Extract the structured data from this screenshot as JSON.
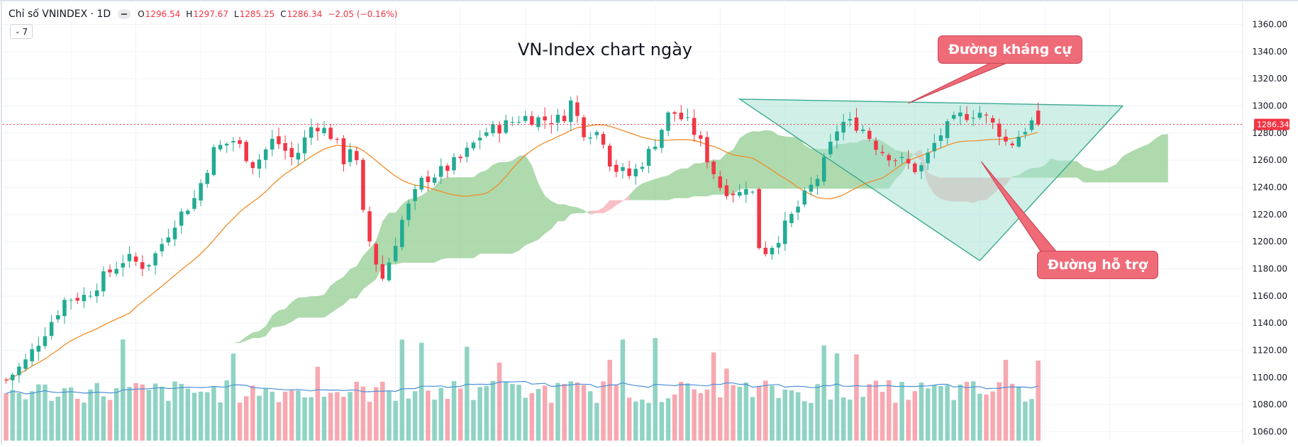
{
  "header": {
    "symbol": "Chỉ số VNINDEX · 1D",
    "ohlc": {
      "o_label": "O",
      "o": "1296.54",
      "h_label": "H",
      "h": "1297.67",
      "l_label": "L",
      "l": "1285.25",
      "c_label": "C",
      "c": "1286.34",
      "change": "−2.05 (−0.16%)"
    },
    "collapsed_count": "7"
  },
  "chart_data": {
    "type": "candlestick",
    "title": "VN-Index chart ngày",
    "ylim": [
      1060,
      1370
    ],
    "yticks": [
      1060,
      1080,
      1100,
      1120,
      1140,
      1160,
      1180,
      1200,
      1220,
      1240,
      1260,
      1280,
      1300,
      1320,
      1340,
      1360
    ],
    "ytick_labels": [
      "1060.00",
      "1080.00",
      "1100.00",
      "1120.00",
      "1140.00",
      "1160.00",
      "1180.00",
      "1200.00",
      "1220.00",
      "1240.00",
      "1260.00",
      "1280.00",
      "1300.00",
      "1320.00",
      "1340.00",
      "1360.00"
    ],
    "last_price": 1286.34,
    "last_price_label": "1286.34",
    "candle_count": 160,
    "extra_cloud_bars": 20,
    "price_path": [
      [
        0,
        1098
      ],
      [
        4,
        1112
      ],
      [
        8,
        1135
      ],
      [
        12,
        1158
      ],
      [
        16,
        1160
      ],
      [
        20,
        1175
      ],
      [
        24,
        1188
      ],
      [
        28,
        1182
      ],
      [
        30,
        1190
      ],
      [
        34,
        1215
      ],
      [
        38,
        1232
      ],
      [
        42,
        1268
      ],
      [
        46,
        1275
      ],
      [
        50,
        1256
      ],
      [
        54,
        1276
      ],
      [
        58,
        1260
      ],
      [
        62,
        1288
      ],
      [
        66,
        1277
      ],
      [
        68,
        1260
      ],
      [
        70,
        1275
      ],
      [
        72,
        1218
      ],
      [
        74,
        1190
      ],
      [
        76,
        1172
      ],
      [
        80,
        1218
      ],
      [
        84,
        1246
      ],
      [
        88,
        1252
      ],
      [
        92,
        1262
      ],
      [
        96,
        1280
      ],
      [
        100,
        1285
      ],
      [
        104,
        1292
      ],
      [
        108,
        1290
      ],
      [
        112,
        1290
      ],
      [
        114,
        1304
      ],
      [
        116,
        1282
      ],
      [
        120,
        1280
      ],
      [
        122,
        1255
      ],
      [
        126,
        1248
      ],
      [
        130,
        1268
      ],
      [
        134,
        1297
      ],
      [
        138,
        1285
      ],
      [
        140,
        1272
      ],
      [
        144,
        1240
      ],
      [
        148,
        1235
      ],
      [
        150,
        1248
      ],
      [
        152,
        1190
      ],
      [
        155,
        1200
      ],
      [
        160,
        1228
      ],
      [
        164,
        1250
      ],
      [
        168,
        1288
      ],
      [
        172,
        1286
      ],
      [
        176,
        1268
      ],
      [
        180,
        1260
      ],
      [
        184,
        1252
      ],
      [
        188,
        1278
      ],
      [
        192,
        1292
      ],
      [
        196,
        1296
      ],
      [
        200,
        1282
      ],
      [
        202,
        1270
      ],
      [
        206,
        1286
      ],
      [
        208,
        1291
      ]
    ],
    "volume_ylim": [
      0,
      115
    ],
    "series": [
      {
        "name": "MA20",
        "color": "#f28c28"
      },
      {
        "name": "Volume MA",
        "color": "#4a90d9"
      }
    ],
    "annotations": {
      "resistance_label": "Đường kháng cự",
      "support_label": "Đường hỗ trợ"
    },
    "colors": {
      "up": "#22ab94",
      "down": "#f23645",
      "vol_up": "#8fd3c4",
      "vol_down": "#f7a8b0",
      "cloud_bull": "#8ccb8a",
      "cloud_bear": "#f5a5ac",
      "triangle_fill": "#a8e2d3",
      "triangle_stroke": "#3aa98f",
      "callout_bg": "#f06b78"
    }
  }
}
